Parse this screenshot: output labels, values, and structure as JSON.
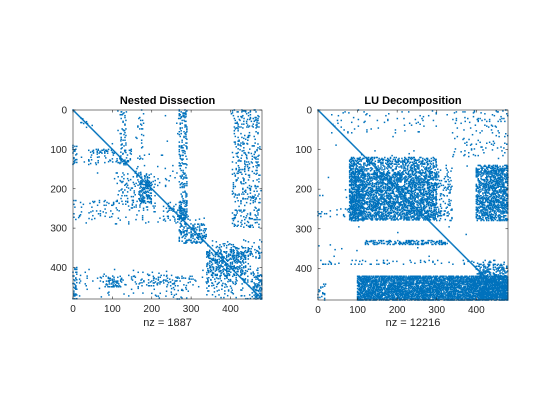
{
  "chart_data": [
    {
      "type": "scatter",
      "title": "Nested Dissection",
      "xlabel": "nz = 1887",
      "ylabel": "",
      "xlim": [
        0,
        480
      ],
      "ylim": [
        480,
        0
      ],
      "x_ticks": [
        "0",
        "100",
        "200",
        "300",
        "400"
      ],
      "y_ticks": [
        "0",
        "100",
        "200",
        "300",
        "400"
      ],
      "nz": 1887,
      "marker_color": "#0072BD",
      "blocks": [
        {
          "x": [
            20,
            50
          ],
          "y": [
            20,
            50
          ],
          "density": 0.08
        },
        {
          "x": [
            120,
            135
          ],
          "y": [
            0,
            140
          ],
          "density": 0.12
        },
        {
          "x": [
            160,
            180
          ],
          "y": [
            0,
            290
          ],
          "density": 0.05
        },
        {
          "x": [
            0,
            10
          ],
          "y": [
            90,
            140
          ],
          "density": 0.25
        },
        {
          "x": [
            40,
            150
          ],
          "y": [
            100,
            140
          ],
          "density": 0.1
        },
        {
          "x": [
            0,
            110
          ],
          "y": [
            230,
            280
          ],
          "density": 0.05
        },
        {
          "x": [
            110,
            210
          ],
          "y": [
            160,
            260
          ],
          "density": 0.08
        },
        {
          "x": [
            170,
            200
          ],
          "y": [
            180,
            240
          ],
          "density": 0.3
        },
        {
          "x": [
            270,
            290
          ],
          "y": [
            0,
            280
          ],
          "density": 0.15
        },
        {
          "x": [
            270,
            290
          ],
          "y": [
            230,
            340
          ],
          "density": 0.3
        },
        {
          "x": [
            230,
            280
          ],
          "y": [
            240,
            260
          ],
          "density": 0.12
        },
        {
          "x": [
            405,
            475
          ],
          "y": [
            0,
            300
          ],
          "density": 0.1
        },
        {
          "x": [
            300,
            340
          ],
          "y": [
            290,
            340
          ],
          "density": 0.25
        },
        {
          "x": [
            0,
            480
          ],
          "y": [
            420,
            450
          ],
          "density": 0.04
        },
        {
          "x": [
            85,
            125
          ],
          "y": [
            425,
            450
          ],
          "density": 0.25
        },
        {
          "x": [
            200,
            290
          ],
          "y": [
            420,
            480
          ],
          "density": 0.05
        },
        {
          "x": [
            340,
            480
          ],
          "y": [
            330,
            480
          ],
          "density": 0.05
        },
        {
          "x": [
            340,
            440
          ],
          "y": [
            360,
            420
          ],
          "density": 0.2
        },
        {
          "x": [
            390,
            480
          ],
          "y": [
            350,
            380
          ],
          "density": 0.1
        },
        {
          "x": [
            0,
            10
          ],
          "y": [
            400,
            480
          ],
          "density": 0.15
        },
        {
          "x": [
            460,
            480
          ],
          "y": [
            420,
            480
          ],
          "density": 0.25
        }
      ]
    },
    {
      "type": "scatter",
      "title": "LU Decomposition",
      "xlabel": "nz = 12216",
      "ylabel": "",
      "xlim": [
        0,
        480
      ],
      "ylim": [
        480,
        0
      ],
      "x_ticks": [
        "0",
        "100",
        "200",
        "300",
        "400"
      ],
      "y_ticks": [
        "0",
        "100",
        "200",
        "300",
        "400"
      ],
      "nz": 12216,
      "marker_color": "#0072BD",
      "blocks": [
        {
          "x": [
            0,
            480
          ],
          "y": [
            0,
            480
          ],
          "density": 0.002
        },
        {
          "x": [
            30,
            300
          ],
          "y": [
            0,
            60
          ],
          "density": 0.02
        },
        {
          "x": [
            340,
            480
          ],
          "y": [
            0,
            120
          ],
          "density": 0.04
        },
        {
          "x": [
            80,
            300
          ],
          "y": [
            120,
            160
          ],
          "density": 0.3
        },
        {
          "x": [
            80,
            300
          ],
          "y": [
            160,
            280
          ],
          "density": 0.45
        },
        {
          "x": [
            80,
            120
          ],
          "y": [
            150,
            280
          ],
          "density": 0.3
        },
        {
          "x": [
            300,
            340
          ],
          "y": [
            140,
            280
          ],
          "density": 0.12
        },
        {
          "x": [
            400,
            480
          ],
          "y": [
            140,
            280
          ],
          "density": 0.45
        },
        {
          "x": [
            120,
            330
          ],
          "y": [
            330,
            340
          ],
          "density": 0.3
        },
        {
          "x": [
            0,
            80
          ],
          "y": [
            250,
            270
          ],
          "density": 0.05
        },
        {
          "x": [
            0,
            480
          ],
          "y": [
            380,
            390
          ],
          "density": 0.08
        },
        {
          "x": [
            100,
            480
          ],
          "y": [
            420,
            480
          ],
          "density": 0.7
        },
        {
          "x": [
            400,
            480
          ],
          "y": [
            390,
            480
          ],
          "density": 0.3
        },
        {
          "x": [
            0,
            20
          ],
          "y": [
            440,
            480
          ],
          "density": 0.1
        }
      ]
    }
  ]
}
